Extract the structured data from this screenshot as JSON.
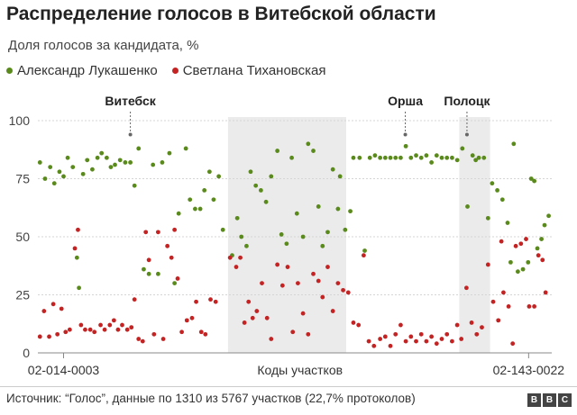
{
  "title": "Распределение голосов в Витебской области",
  "subtitle": "Доля голосов за кандидата, %",
  "legend": [
    {
      "label": "Александр Лукашенко",
      "color": "#5a8a1c"
    },
    {
      "label": "Светлана Тихановская",
      "color": "#c42323"
    }
  ],
  "source": "Источник: “Голос”, данные по 1310 из 5767 участков (22,7% протоколов)",
  "logo": [
    "B",
    "B",
    "C"
  ],
  "chart_data": {
    "type": "scatter",
    "title": "Распределение голосов в Витебской области",
    "xlabel": "Коды участков",
    "ylabel": "Доля голосов за кандидата, %",
    "ylim": [
      0,
      100
    ],
    "yticks": [
      0,
      25,
      50,
      75,
      100
    ],
    "xlim": [
      0,
      100
    ],
    "x_tick_labels": [
      {
        "label": "02-014-0003",
        "x": 5
      },
      {
        "label": "Коды участков",
        "x": 51
      },
      {
        "label": "02-143-0022",
        "x": 95.5
      }
    ],
    "shaded_regions": [
      [
        37,
        60
      ],
      [
        82,
        88
      ]
    ],
    "annotations": [
      {
        "label": "Витебск",
        "x": 18,
        "y": 94
      },
      {
        "label": "Орша",
        "x": 71.5,
        "y": 94
      },
      {
        "label": "Полоцк",
        "x": 83.5,
        "y": 94
      }
    ],
    "grid": true,
    "series": [
      {
        "name": "Александр Лукашенко",
        "color": "#5a8a1c",
        "points": [
          [
            0.4,
            82
          ],
          [
            1.4,
            75
          ],
          [
            2.4,
            80
          ],
          [
            3.2,
            73
          ],
          [
            4.2,
            78
          ],
          [
            5.0,
            76
          ],
          [
            5.8,
            84
          ],
          [
            6.8,
            80
          ],
          [
            7.6,
            41
          ],
          [
            8.0,
            28
          ],
          [
            8.8,
            77
          ],
          [
            9.6,
            83
          ],
          [
            10.6,
            79
          ],
          [
            11.6,
            84
          ],
          [
            12.4,
            86
          ],
          [
            13.4,
            84
          ],
          [
            14.2,
            80
          ],
          [
            15.0,
            81
          ],
          [
            16.0,
            83
          ],
          [
            17.0,
            82
          ],
          [
            18.0,
            82
          ],
          [
            18.8,
            72
          ],
          [
            19.6,
            88
          ],
          [
            20.6,
            36
          ],
          [
            21.6,
            34
          ],
          [
            22.4,
            81
          ],
          [
            23.4,
            34
          ],
          [
            24.2,
            82
          ],
          [
            25.6,
            86
          ],
          [
            26.6,
            30
          ],
          [
            27.4,
            60
          ],
          [
            28.8,
            88
          ],
          [
            29.6,
            66
          ],
          [
            30.6,
            62
          ],
          [
            31.6,
            62
          ],
          [
            32.4,
            70
          ],
          [
            33.4,
            78
          ],
          [
            34.2,
            66
          ],
          [
            35.2,
            76
          ],
          [
            36.0,
            53
          ],
          [
            37.8,
            42
          ],
          [
            38.8,
            58
          ],
          [
            39.6,
            50
          ],
          [
            40.6,
            46
          ],
          [
            41.4,
            78
          ],
          [
            42.4,
            72
          ],
          [
            43.4,
            70
          ],
          [
            44.4,
            65
          ],
          [
            45.4,
            76
          ],
          [
            46.6,
            87
          ],
          [
            47.4,
            51
          ],
          [
            48.4,
            47
          ],
          [
            49.4,
            84
          ],
          [
            50.4,
            60
          ],
          [
            51.6,
            50
          ],
          [
            52.6,
            90
          ],
          [
            53.6,
            87
          ],
          [
            54.6,
            63
          ],
          [
            55.4,
            46
          ],
          [
            56.4,
            52
          ],
          [
            57.4,
            79
          ],
          [
            58.4,
            62
          ],
          [
            58.8,
            76
          ],
          [
            59.8,
            53
          ],
          [
            60.8,
            61
          ],
          [
            61.4,
            84
          ],
          [
            62.6,
            84
          ],
          [
            63.6,
            44
          ],
          [
            64.6,
            84
          ],
          [
            65.6,
            85
          ],
          [
            66.6,
            84
          ],
          [
            67.6,
            84
          ],
          [
            68.6,
            84
          ],
          [
            69.6,
            84
          ],
          [
            70.6,
            84
          ],
          [
            71.6,
            89
          ],
          [
            72.6,
            84
          ],
          [
            73.6,
            85
          ],
          [
            74.6,
            84
          ],
          [
            75.6,
            85
          ],
          [
            76.6,
            82
          ],
          [
            77.6,
            85
          ],
          [
            78.6,
            84
          ],
          [
            79.6,
            84
          ],
          [
            80.6,
            84
          ],
          [
            81.6,
            83
          ],
          [
            82.6,
            88
          ],
          [
            83.6,
            63
          ],
          [
            84.6,
            85
          ],
          [
            85.2,
            83
          ],
          [
            85.8,
            84
          ],
          [
            86.8,
            84
          ],
          [
            87.6,
            58
          ],
          [
            88.4,
            73
          ],
          [
            89.4,
            70
          ],
          [
            90.4,
            66
          ],
          [
            91.4,
            56
          ],
          [
            92.0,
            39
          ],
          [
            92.6,
            90
          ],
          [
            93.4,
            35
          ],
          [
            94.4,
            36
          ],
          [
            95.4,
            39
          ],
          [
            96.0,
            75
          ],
          [
            96.6,
            74
          ],
          [
            97.2,
            45
          ],
          [
            98.0,
            49
          ],
          [
            98.6,
            55
          ],
          [
            99.4,
            59
          ]
        ]
      },
      {
        "name": "Светлана Тихановская",
        "color": "#c42323",
        "points": [
          [
            0.4,
            7
          ],
          [
            1.2,
            18
          ],
          [
            2.2,
            7
          ],
          [
            3.0,
            21
          ],
          [
            3.8,
            8
          ],
          [
            4.6,
            19
          ],
          [
            5.4,
            9
          ],
          [
            6.2,
            10
          ],
          [
            7.2,
            45
          ],
          [
            7.8,
            53
          ],
          [
            8.4,
            12
          ],
          [
            9.2,
            10
          ],
          [
            10.2,
            10
          ],
          [
            11.0,
            9
          ],
          [
            12.2,
            12
          ],
          [
            13.0,
            10
          ],
          [
            14.0,
            12
          ],
          [
            14.8,
            14
          ],
          [
            15.6,
            10
          ],
          [
            16.4,
            12
          ],
          [
            17.4,
            10
          ],
          [
            18.2,
            11
          ],
          [
            18.8,
            23
          ],
          [
            19.6,
            6
          ],
          [
            20.4,
            5
          ],
          [
            21.0,
            52
          ],
          [
            21.6,
            40
          ],
          [
            22.6,
            8
          ],
          [
            23.4,
            52
          ],
          [
            24.4,
            6
          ],
          [
            25.2,
            46
          ],
          [
            26.0,
            41
          ],
          [
            26.6,
            53
          ],
          [
            27.2,
            32
          ],
          [
            28.0,
            9
          ],
          [
            29.0,
            14
          ],
          [
            30.0,
            15
          ],
          [
            30.8,
            22
          ],
          [
            31.8,
            9
          ],
          [
            32.6,
            8
          ],
          [
            33.6,
            23
          ],
          [
            34.6,
            22
          ],
          [
            37.4,
            41
          ],
          [
            38.6,
            37
          ],
          [
            39.4,
            41
          ],
          [
            40.2,
            13
          ],
          [
            41.0,
            22
          ],
          [
            41.8,
            15
          ],
          [
            42.6,
            18
          ],
          [
            43.6,
            30
          ],
          [
            44.6,
            15
          ],
          [
            45.4,
            6
          ],
          [
            46.6,
            38
          ],
          [
            47.6,
            29
          ],
          [
            48.6,
            37
          ],
          [
            49.6,
            9
          ],
          [
            50.6,
            30
          ],
          [
            51.6,
            17
          ],
          [
            52.6,
            8
          ],
          [
            53.6,
            34
          ],
          [
            54.6,
            31
          ],
          [
            55.4,
            24
          ],
          [
            56.4,
            37
          ],
          [
            57.4,
            18
          ],
          [
            58.4,
            30
          ],
          [
            59.4,
            27
          ],
          [
            60.4,
            26
          ],
          [
            61.4,
            13
          ],
          [
            62.4,
            12
          ],
          [
            63.4,
            42
          ],
          [
            64.4,
            5
          ],
          [
            65.4,
            3
          ],
          [
            66.6,
            6
          ],
          [
            67.6,
            7
          ],
          [
            68.6,
            3
          ],
          [
            69.6,
            8
          ],
          [
            70.6,
            12
          ],
          [
            71.6,
            5
          ],
          [
            72.6,
            7
          ],
          [
            73.6,
            5
          ],
          [
            74.6,
            8
          ],
          [
            75.6,
            5
          ],
          [
            76.6,
            7
          ],
          [
            77.6,
            4
          ],
          [
            78.6,
            6
          ],
          [
            79.6,
            8
          ],
          [
            80.6,
            5
          ],
          [
            81.6,
            12
          ],
          [
            82.4,
            6
          ],
          [
            83.4,
            28
          ],
          [
            84.4,
            13
          ],
          [
            85.4,
            8
          ],
          [
            86.4,
            11
          ],
          [
            87.6,
            38
          ],
          [
            88.6,
            22
          ],
          [
            89.6,
            14
          ],
          [
            90.2,
            48
          ],
          [
            90.6,
            26
          ],
          [
            91.6,
            20
          ],
          [
            92.4,
            4
          ],
          [
            93.0,
            46
          ],
          [
            94.0,
            47
          ],
          [
            95.0,
            49
          ],
          [
            95.6,
            20
          ],
          [
            96.6,
            20
          ],
          [
            97.4,
            42
          ],
          [
            98.2,
            40
          ],
          [
            98.8,
            26
          ]
        ]
      }
    ]
  }
}
